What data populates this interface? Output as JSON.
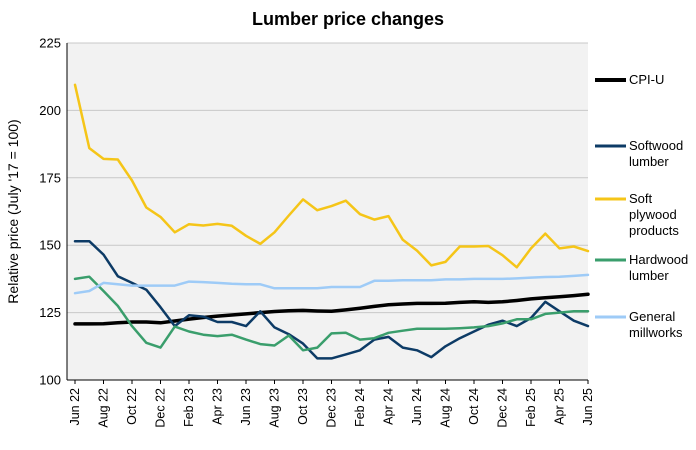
{
  "chart_data": {
    "type": "line",
    "title": "Lumber price changes",
    "ylabel": "Relative price (July '17 = 100)",
    "xlabel": "",
    "ylim": [
      100,
      225
    ],
    "yticks": [
      100,
      125,
      150,
      175,
      200,
      225
    ],
    "grid": true,
    "legend_position": "right",
    "x": [
      "Jun 22",
      "Jul 22",
      "Aug 22",
      "Sep 22",
      "Oct 22",
      "Nov 22",
      "Dec 22",
      "Jan 23",
      "Feb 23",
      "Mar 23",
      "Apr 23",
      "May 23",
      "Jun 23",
      "Jul 23",
      "Aug 23",
      "Sep 23",
      "Oct 23",
      "Nov 23",
      "Dec 23",
      "Jan 24",
      "Feb 24",
      "Mar 24",
      "Apr 24",
      "May 24",
      "Jun 24",
      "Jul 24",
      "Aug 24",
      "Sep 24",
      "Oct 24",
      "Nov 24",
      "Dec 24",
      "Jan 25",
      "Feb 25",
      "Mar 25",
      "Apr 25",
      "May 25",
      "Jun 25"
    ],
    "xticks": [
      "Jun 22",
      "Aug 22",
      "Oct 22",
      "Dec 22",
      "Feb 23",
      "Apr 23",
      "Jun 23",
      "Aug 23",
      "Oct 23",
      "Dec 23",
      "Feb 24",
      "Apr 24",
      "Jun 24",
      "Aug 24",
      "Oct 24",
      "Dec 24",
      "Feb 25",
      "Apr 25",
      "Jun 25"
    ],
    "series": [
      {
        "name": "CPI-U",
        "color": "#000000",
        "width": 3.5,
        "values": [
          120.8,
          120.8,
          120.9,
          121.2,
          121.5,
          121.5,
          121.2,
          121.9,
          122.6,
          123.2,
          123.7,
          124.1,
          124.5,
          125.0,
          125.4,
          125.7,
          125.8,
          125.6,
          125.5,
          126.0,
          126.6,
          127.3,
          127.9,
          128.2,
          128.4,
          128.4,
          128.5,
          128.8,
          129.0,
          128.8,
          129.0,
          129.5,
          130.1,
          130.5,
          130.9,
          131.3,
          131.8
        ]
      },
      {
        "name": "Softwood lumber",
        "color": "#0d3b66",
        "width": 2.5,
        "values": [
          151.5,
          151.5,
          146.5,
          138.5,
          136.0,
          133.5,
          127.0,
          120.0,
          124.0,
          123.5,
          121.5,
          121.5,
          120.0,
          125.5,
          119.5,
          117.0,
          113.5,
          108.0,
          108.0,
          109.5,
          111.0,
          115.0,
          116.0,
          112.0,
          111.0,
          108.5,
          112.5,
          115.5,
          118.0,
          120.5,
          122.0,
          120.0,
          123.0,
          129.0,
          125.5,
          122.0,
          120.0
        ]
      },
      {
        "name": "Soft plywood products",
        "color": "#f5c518",
        "width": 2.5,
        "values": [
          209.5,
          186.0,
          182.0,
          181.8,
          174.0,
          164.0,
          160.5,
          154.8,
          157.8,
          157.3,
          157.9,
          157.2,
          153.5,
          150.5,
          154.8,
          161.0,
          167.0,
          163.0,
          164.5,
          166.5,
          161.5,
          159.5,
          160.8,
          152.0,
          148.0,
          142.5,
          143.8,
          149.5,
          149.5,
          149.7,
          146.3,
          141.8,
          148.8,
          154.3,
          148.8,
          149.5,
          147.8
        ]
      },
      {
        "name": "Hardwood lumber",
        "color": "#3a9e6c",
        "width": 2.5,
        "values": [
          137.5,
          138.3,
          133.0,
          127.5,
          120.0,
          113.8,
          112.0,
          119.8,
          118.0,
          116.8,
          116.3,
          116.8,
          115.0,
          113.3,
          112.8,
          116.5,
          111.0,
          112.0,
          117.3,
          117.5,
          115.0,
          115.5,
          117.5,
          118.3,
          119.0,
          119.0,
          119.0,
          119.2,
          119.5,
          120.0,
          121.0,
          122.5,
          122.5,
          124.5,
          125.0,
          125.5,
          125.5
        ]
      },
      {
        "name": "General millworks",
        "color": "#9ecbf7",
        "width": 2.5,
        "values": [
          132.2,
          133.0,
          136.0,
          135.5,
          135.0,
          135.0,
          135.0,
          135.0,
          136.5,
          136.3,
          136.0,
          135.7,
          135.5,
          135.5,
          134.0,
          134.0,
          134.0,
          134.0,
          134.5,
          134.5,
          134.5,
          136.8,
          136.8,
          137.0,
          137.0,
          137.0,
          137.3,
          137.3,
          137.5,
          137.5,
          137.5,
          137.7,
          138.0,
          138.2,
          138.3,
          138.6,
          139.0
        ]
      }
    ]
  },
  "legend": [
    {
      "lines": [
        "CPI-U"
      ]
    },
    {
      "lines": [
        "Softwood",
        "lumber"
      ]
    },
    {
      "lines": [
        "Soft",
        "plywood",
        "products"
      ]
    },
    {
      "lines": [
        "Hardwood",
        "lumber"
      ]
    },
    {
      "lines": [
        "General",
        "millworks"
      ]
    }
  ],
  "colors": {
    "plot_bg": "#f2f2f2",
    "grid": "#c8c8c8"
  }
}
